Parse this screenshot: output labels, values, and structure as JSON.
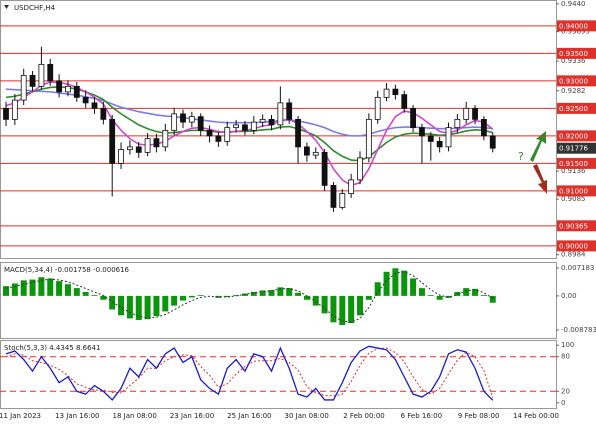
{
  "chart_data": [
    {
      "type": "candlestick",
      "title": "USDCHF,H4",
      "annotation": "?",
      "ylim": [
        0.8978,
        0.9447
      ],
      "yticks": [
        {
          "value": 0.944,
          "label": "0.9440"
        },
        0.93895,
        0.9336,
        0.9282,
        0.9136,
        0.9085,
        0.8984
      ],
      "levels": [
        {
          "value": 0.94,
          "label": "0.94000"
        },
        {
          "value": 0.935,
          "label": "0.93500"
        },
        {
          "value": 0.93,
          "label": "0.93000"
        },
        {
          "value": 0.925,
          "label": "0.92500"
        },
        {
          "value": 0.92,
          "label": "0.92000"
        },
        {
          "value": 0.915,
          "label": "0.91500"
        },
        {
          "value": 0.91,
          "label": "0.91000"
        },
        0.90365,
        {
          "value": 0.9,
          "label": "0.90000"
        }
      ],
      "level_color": "#e0302a",
      "last_price": 0.91776,
      "open": [
        0.925,
        0.923,
        0.9265,
        0.931,
        0.929,
        0.933,
        0.93,
        0.928,
        0.929,
        0.927,
        0.926,
        0.925,
        0.923,
        0.915,
        0.9175,
        0.918,
        0.917,
        0.9195,
        0.918,
        0.921,
        0.924,
        0.9225,
        0.9235,
        0.921,
        0.92,
        0.919,
        0.9215,
        0.922,
        0.921,
        0.9225,
        0.923,
        0.922,
        0.926,
        0.923,
        0.918,
        0.9165,
        0.917,
        0.911,
        0.907,
        0.9095,
        0.912,
        0.916,
        0.923,
        0.927,
        0.9285,
        0.9275,
        0.925,
        0.9215,
        0.92,
        0.919,
        0.918,
        0.9215,
        0.923,
        0.925,
        0.923,
        0.92
      ],
      "high": [
        0.9262,
        0.9276,
        0.9322,
        0.9318,
        0.9362,
        0.934,
        0.9312,
        0.9301,
        0.9298,
        0.9283,
        0.9271,
        0.9262,
        0.9238,
        0.9188,
        0.9192,
        0.9189,
        0.9205,
        0.9204,
        0.9222,
        0.9251,
        0.9248,
        0.9244,
        0.9241,
        0.9219,
        0.9208,
        0.9226,
        0.9229,
        0.9227,
        0.9236,
        0.9239,
        0.9238,
        0.929,
        0.9268,
        0.9236,
        0.9188,
        0.9179,
        0.9176,
        0.9116,
        0.9103,
        0.9131,
        0.9172,
        0.9241,
        0.9282,
        0.9296,
        0.9293,
        0.9282,
        0.9256,
        0.9222,
        0.9207,
        0.9198,
        0.9224,
        0.924,
        0.9262,
        0.9256,
        0.9236,
        0.9206
      ],
      "low": [
        0.9218,
        0.922,
        0.9256,
        0.9281,
        0.9284,
        0.9291,
        0.927,
        0.9272,
        0.9262,
        0.9251,
        0.924,
        0.9221,
        0.909,
        0.914,
        0.9166,
        0.916,
        0.9163,
        0.917,
        0.9172,
        0.9201,
        0.9214,
        0.9216,
        0.92,
        0.9188,
        0.918,
        0.9182,
        0.9206,
        0.9201,
        0.9203,
        0.9216,
        0.921,
        0.9212,
        0.9222,
        0.915,
        0.9153,
        0.9158,
        0.91,
        0.9062,
        0.9066,
        0.9087,
        0.9112,
        0.9152,
        0.9222,
        0.9263,
        0.9266,
        0.9242,
        0.9207,
        0.915,
        0.9155,
        0.917,
        0.9172,
        0.9206,
        0.9222,
        0.9221,
        0.9192,
        0.917
      ],
      "close": [
        0.923,
        0.9265,
        0.931,
        0.929,
        0.933,
        0.93,
        0.928,
        0.929,
        0.927,
        0.926,
        0.925,
        0.923,
        0.915,
        0.9175,
        0.918,
        0.917,
        0.9195,
        0.918,
        0.921,
        0.924,
        0.9225,
        0.9235,
        0.921,
        0.92,
        0.919,
        0.9215,
        0.922,
        0.921,
        0.9225,
        0.923,
        0.922,
        0.926,
        0.923,
        0.918,
        0.9165,
        0.917,
        0.911,
        0.907,
        0.9095,
        0.912,
        0.916,
        0.923,
        0.927,
        0.9285,
        0.9275,
        0.925,
        0.9215,
        0.92,
        0.919,
        0.918,
        0.9215,
        0.923,
        0.925,
        0.923,
        0.92,
        0.91776
      ],
      "ma_lines": [
        {
          "color": "#7c7ce0",
          "values": [
            0.9285,
            0.9284,
            0.9283,
            0.9282,
            0.9281,
            0.928,
            0.9278,
            0.9276,
            0.9274,
            0.9271,
            0.9268,
            0.9264,
            0.9258,
            0.9252,
            0.9248,
            0.9244,
            0.9241,
            0.9238,
            0.9236,
            0.9235,
            0.9233,
            0.9231,
            0.9229,
            0.9227,
            0.9225,
            0.9224,
            0.9224,
            0.9224,
            0.9224,
            0.9225,
            0.9226,
            0.9228,
            0.9229,
            0.9227,
            0.9224,
            0.922,
            0.9215,
            0.9208,
            0.9203,
            0.92,
            0.92,
            0.9203,
            0.9208,
            0.9212,
            0.9215,
            0.9216,
            0.9216,
            0.9215,
            0.9214,
            0.9213,
            0.9213,
            0.9214,
            0.9215,
            0.9216,
            0.9215,
            0.9213
          ]
        },
        {
          "color": "#2e8b2e",
          "values": [
            0.927,
            0.9272,
            0.9276,
            0.928,
            0.9285,
            0.9288,
            0.9289,
            0.9288,
            0.9285,
            0.928,
            0.9274,
            0.9266,
            0.9252,
            0.924,
            0.923,
            0.922,
            0.9213,
            0.9208,
            0.9205,
            0.9206,
            0.9208,
            0.921,
            0.921,
            0.9209,
            0.9207,
            0.9207,
            0.9208,
            0.9208,
            0.9209,
            0.9211,
            0.9212,
            0.9216,
            0.9217,
            0.9213,
            0.9207,
            0.92,
            0.9188,
            0.9173,
            0.9163,
            0.9156,
            0.9155,
            0.9162,
            0.9175,
            0.9188,
            0.9198,
            0.9203,
            0.9205,
            0.9204,
            0.9203,
            0.9201,
            0.9202,
            0.9205,
            0.9209,
            0.9211,
            0.921,
            0.9206
          ]
        },
        {
          "color": "#d048d0",
          "values": [
            0.9255,
            0.926,
            0.927,
            0.928,
            0.9292,
            0.9298,
            0.9297,
            0.9294,
            0.9288,
            0.928,
            0.927,
            0.9258,
            0.923,
            0.921,
            0.9195,
            0.9185,
            0.9183,
            0.9185,
            0.919,
            0.92,
            0.9208,
            0.9214,
            0.9215,
            0.9212,
            0.9208,
            0.9206,
            0.9208,
            0.921,
            0.9213,
            0.9218,
            0.922,
            0.9228,
            0.923,
            0.9222,
            0.9208,
            0.9192,
            0.917,
            0.914,
            0.912,
            0.911,
            0.9115,
            0.914,
            0.9175,
            0.921,
            0.9235,
            0.9245,
            0.9242,
            0.9232,
            0.922,
            0.9208,
            0.9205,
            0.921,
            0.922,
            0.9228,
            0.9225,
            0.9212
          ]
        }
      ]
    },
    {
      "type": "macd",
      "title": "MACD(5,34,4) -0.001758 -0.000616",
      "ylim": [
        -0.01084,
        0.00872
      ],
      "yticks": [
        0.007183,
        {
          "value": 0,
          "label": "0.00"
        },
        -0.008783
      ],
      "color": "#0a960a",
      "signal_color": "#333333",
      "values": [
        0.0025,
        0.0032,
        0.004,
        0.0042,
        0.0048,
        0.0045,
        0.0038,
        0.003,
        0.002,
        0.001,
        0.0002,
        -0.001,
        -0.0035,
        -0.005,
        -0.0058,
        -0.0062,
        -0.006,
        -0.0052,
        -0.004,
        -0.0025,
        -0.0012,
        -0.0004,
        0.0002,
        0.0,
        -0.0005,
        -0.0003,
        0.0002,
        0.0006,
        0.001,
        0.0014,
        0.0015,
        0.0022,
        0.002,
        0.0008,
        -0.001,
        -0.0025,
        -0.0045,
        -0.0068,
        -0.0075,
        -0.007,
        -0.005,
        -0.001,
        0.0035,
        0.0062,
        0.0071,
        0.0065,
        0.0045,
        0.002,
        0.0002,
        -0.001,
        -0.0005,
        0.001,
        0.002,
        0.0018,
        0.0002,
        -0.001758
      ],
      "signal_values": [
        0.002,
        0.0024,
        0.003,
        0.0035,
        0.004,
        0.0043,
        0.0041,
        0.0036,
        0.0028,
        0.0019,
        0.001,
        0.0001,
        -0.0015,
        -0.003,
        -0.0043,
        -0.0052,
        -0.0057,
        -0.0055,
        -0.0048,
        -0.0036,
        -0.0023,
        -0.0012,
        -0.0004,
        -0.0001,
        -0.0003,
        -0.0003,
        0.0,
        0.0004,
        0.0008,
        0.0011,
        0.0013,
        0.0018,
        0.0019,
        0.0013,
        0.0,
        -0.0015,
        -0.0032,
        -0.0052,
        -0.0065,
        -0.0068,
        -0.0058,
        -0.003,
        0.001,
        0.004,
        0.0058,
        0.0062,
        0.0052,
        0.0034,
        0.0016,
        0.0002,
        -0.0004,
        0.0004,
        0.0013,
        0.0016,
        0.0008,
        -0.000616
      ]
    },
    {
      "type": "stoch",
      "title": "Stoch(5,3,3) 4.4345 8.6641",
      "ylim": [
        -9,
        109
      ],
      "yticks": [
        0,
        20,
        80,
        100
      ],
      "levels": [
        80,
        20
      ],
      "level_color": "#e0302a",
      "k_color": "#1a1ad0",
      "d_color": "#e03030",
      "k_values": [
        85,
        90,
        75,
        55,
        80,
        60,
        35,
        45,
        20,
        15,
        30,
        20,
        5,
        25,
        60,
        45,
        75,
        60,
        85,
        95,
        70,
        80,
        40,
        25,
        15,
        60,
        75,
        55,
        85,
        80,
        55,
        95,
        60,
        15,
        10,
        25,
        5,
        5,
        35,
        70,
        90,
        98,
        95,
        92,
        75,
        45,
        15,
        10,
        20,
        45,
        85,
        92,
        88,
        60,
        20,
        4.4345
      ],
      "d_values": [
        80,
        85,
        83,
        73,
        70,
        65,
        58,
        47,
        33,
        27,
        22,
        22,
        18,
        17,
        30,
        43,
        60,
        60,
        73,
        80,
        83,
        82,
        63,
        48,
        27,
        33,
        50,
        63,
        72,
        73,
        73,
        77,
        70,
        57,
        28,
        17,
        13,
        12,
        15,
        37,
        65,
        86,
        94,
        95,
        87,
        71,
        45,
        23,
        15,
        25,
        50,
        74,
        88,
        80,
        56,
        8.6641
      ],
      "x_labels": [
        "11 Jan 2023",
        "13 Jan 16:00",
        "18 Jan 08:00",
        "23 Jan 16:00",
        "25 Jan 16:00",
        "30 Jan 08:00",
        "2 Feb 00:00",
        "6 Feb 16:00",
        "9 Feb 08:00",
        "14 Feb 00:00"
      ]
    }
  ]
}
